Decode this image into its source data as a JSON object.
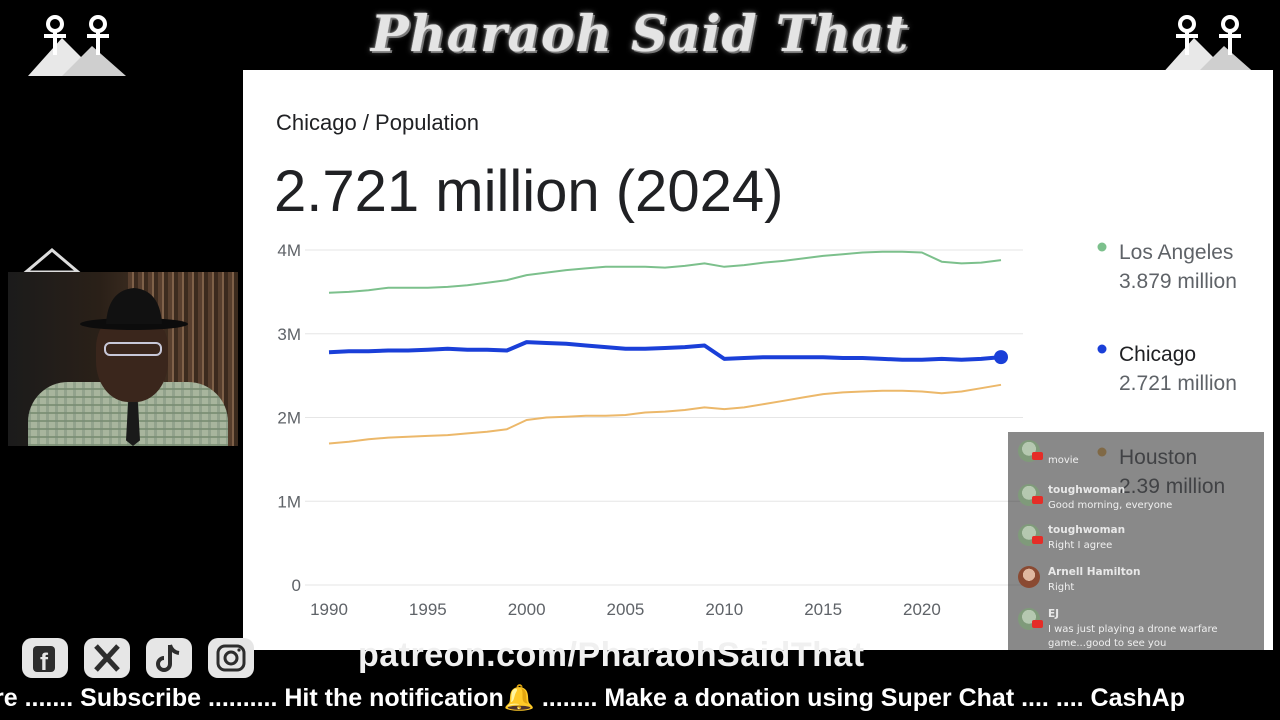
{
  "overlay": {
    "title": "Pharaoh Said That",
    "patreon": "patreon.com/PharaohSaidThat",
    "ticker": "re ....... Subscribe .......... Hit the notification🔔 ........ Make a donation using Super Chat .... .... CashAp",
    "socials": [
      {
        "icon": "facebook-icon"
      },
      {
        "icon": "x-icon"
      },
      {
        "icon": "tiktok-icon"
      },
      {
        "icon": "instagram-icon"
      }
    ]
  },
  "chart_panel": {
    "breadcrumb": "Chicago / Population",
    "big_value": "2.721 million (2024)"
  },
  "chart_data": {
    "type": "line",
    "title": "",
    "x": [
      1990,
      1991,
      1992,
      1993,
      1994,
      1995,
      1996,
      1997,
      1998,
      1999,
      2000,
      2001,
      2002,
      2003,
      2004,
      2005,
      2006,
      2007,
      2008,
      2009,
      2010,
      2011,
      2012,
      2013,
      2014,
      2015,
      2016,
      2017,
      2018,
      2019,
      2020,
      2021,
      2022,
      2023,
      2024
    ],
    "series": [
      {
        "name": "Los Angeles",
        "value_label": "3.879 million",
        "color": "#7cc08c",
        "values": [
          3.49,
          3.5,
          3.52,
          3.55,
          3.55,
          3.55,
          3.56,
          3.58,
          3.61,
          3.64,
          3.7,
          3.73,
          3.76,
          3.78,
          3.8,
          3.8,
          3.8,
          3.79,
          3.81,
          3.84,
          3.8,
          3.82,
          3.85,
          3.87,
          3.9,
          3.93,
          3.95,
          3.97,
          3.98,
          3.98,
          3.97,
          3.86,
          3.84,
          3.85,
          3.879
        ]
      },
      {
        "name": "Chicago",
        "value_label": "2.721 million",
        "color": "#1a3fd8",
        "values": [
          2.78,
          2.79,
          2.79,
          2.8,
          2.8,
          2.81,
          2.82,
          2.81,
          2.81,
          2.8,
          2.9,
          2.89,
          2.88,
          2.86,
          2.84,
          2.82,
          2.82,
          2.83,
          2.84,
          2.86,
          2.7,
          2.71,
          2.72,
          2.72,
          2.72,
          2.72,
          2.71,
          2.71,
          2.7,
          2.69,
          2.69,
          2.7,
          2.69,
          2.7,
          2.721
        ]
      },
      {
        "name": "Houston",
        "value_label": "2.39 million",
        "color": "#ecb86a",
        "values": [
          1.69,
          1.71,
          1.74,
          1.76,
          1.77,
          1.78,
          1.79,
          1.81,
          1.83,
          1.86,
          1.97,
          2.0,
          2.01,
          2.02,
          2.02,
          2.03,
          2.06,
          2.07,
          2.09,
          2.12,
          2.1,
          2.12,
          2.16,
          2.2,
          2.24,
          2.28,
          2.3,
          2.31,
          2.32,
          2.32,
          2.31,
          2.29,
          2.31,
          2.35,
          2.39
        ]
      }
    ],
    "x_ticks": [
      "1990",
      "1995",
      "2000",
      "2005",
      "2010",
      "2015",
      "2020"
    ],
    "y_ticks": [
      "0",
      "1M",
      "2M",
      "3M",
      "4M"
    ],
    "ylim": [
      0,
      4
    ],
    "xlim": [
      1990,
      2024
    ],
    "grid": true,
    "legend_position": "right",
    "highlight_series": "Chicago"
  },
  "chat": {
    "messages": [
      {
        "author": "",
        "text": "movie",
        "avatar": "default"
      },
      {
        "author": "toughwoman",
        "text": "Good morning, everyone",
        "avatar": "default"
      },
      {
        "author": "toughwoman",
        "text": "Right I agree",
        "avatar": "default"
      },
      {
        "author": "Arnell Hamilton",
        "text": "Right",
        "avatar": "photo"
      },
      {
        "author": "EJ",
        "text": "I was just playing a drone warfare game...good to see you",
        "avatar": "default"
      }
    ]
  }
}
